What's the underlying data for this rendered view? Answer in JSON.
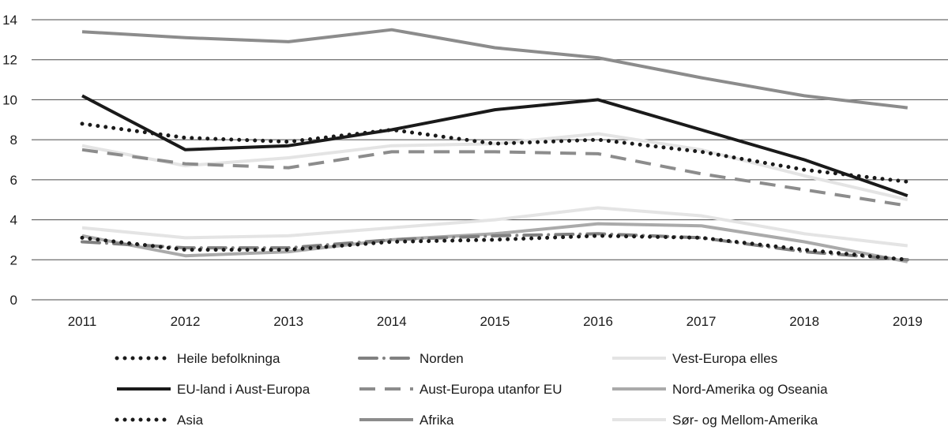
{
  "chart_data": {
    "type": "line",
    "title": "",
    "xlabel": "",
    "ylabel": "",
    "categories": [
      "2011",
      "2012",
      "2013",
      "2014",
      "2015",
      "2016",
      "2017",
      "2018",
      "2019"
    ],
    "ylim": [
      0,
      14
    ],
    "yticks": [
      "0",
      "2",
      "4",
      "6",
      "8",
      "10",
      "12",
      "14"
    ],
    "grid": true,
    "legend_position": "bottom",
    "series": [
      {
        "name": "Heile befolkninga",
        "values": [
          8.8,
          8.1,
          7.9,
          8.5,
          7.8,
          8.0,
          7.4,
          6.5,
          5.9
        ],
        "color": "#1a1a1a",
        "style": "dotted"
      },
      {
        "name": "Norden",
        "values": [
          2.9,
          2.6,
          2.6,
          3.0,
          3.2,
          3.3,
          3.1,
          2.4,
          2.0
        ],
        "color": "#808080",
        "style": "dash-dot"
      },
      {
        "name": "Vest-Europa elles",
        "values": [
          7.7,
          6.7,
          7.1,
          7.7,
          7.8,
          8.3,
          7.5,
          6.2,
          5.0
        ],
        "color": "#e4e4e4",
        "style": "solid"
      },
      {
        "name": "EU-land i Aust-Europa",
        "values": [
          10.2,
          7.5,
          7.7,
          8.5,
          9.5,
          10.0,
          8.5,
          7.0,
          5.2
        ],
        "color": "#1a1a1a",
        "style": "solid"
      },
      {
        "name": "Aust-Europa utanfor EU",
        "values": [
          7.5,
          6.8,
          6.6,
          7.4,
          7.4,
          7.3,
          6.3,
          5.5,
          4.7
        ],
        "color": "#8c8c8c",
        "style": "dashed"
      },
      {
        "name": "Nord-Amerika og Oseania",
        "values": [
          3.2,
          2.2,
          2.4,
          3.0,
          3.3,
          3.8,
          3.7,
          2.9,
          1.9
        ],
        "color": "#aaaaaa",
        "style": "solid"
      },
      {
        "name": "Asia",
        "values": [
          3.1,
          2.5,
          2.5,
          2.9,
          3.0,
          3.2,
          3.1,
          2.5,
          2.0
        ],
        "color": "#1a1a1a",
        "style": "dotted"
      },
      {
        "name": "Afrika",
        "values": [
          13.4,
          13.1,
          12.9,
          13.5,
          12.6,
          12.1,
          11.1,
          10.2,
          9.6
        ],
        "color": "#8c8c8c",
        "style": "solid"
      },
      {
        "name": "Sør- og Mellom-Amerika",
        "values": [
          3.6,
          3.1,
          3.2,
          3.6,
          4.0,
          4.6,
          4.2,
          3.3,
          2.7
        ],
        "color": "#e4e4e4",
        "style": "solid"
      }
    ]
  }
}
